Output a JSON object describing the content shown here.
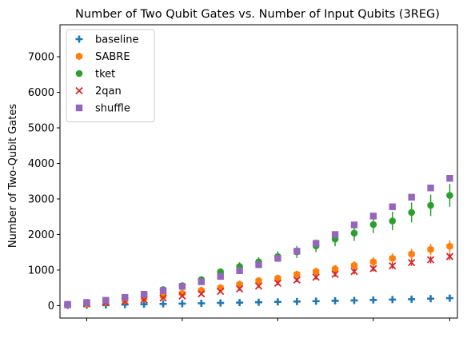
{
  "chart_data": {
    "type": "scatter",
    "title": "Number of Two Qubit Gates vs. Number of Input Qubits (3REG)",
    "ylabel": "Number of Two-Qubit Gates",
    "xlabel": "",
    "ylim": [
      -350,
      7900
    ],
    "y_ticks": [
      0,
      1000,
      2000,
      3000,
      4000,
      5000,
      6000,
      7000
    ],
    "x_range": [
      -0.4,
      20.4
    ],
    "x_ticks": [
      1,
      6,
      11,
      16,
      20
    ],
    "x_tick_labels_shown": false,
    "grid": false,
    "legend_position": "upper-left",
    "series": [
      {
        "name": "baseline",
        "marker": "plus",
        "color": "#1f77b4",
        "x": [
          0,
          1,
          2,
          3,
          4,
          5,
          6,
          7,
          8,
          9,
          10,
          11,
          12,
          13,
          14,
          15,
          16,
          17,
          18,
          19,
          20
        ],
        "values": [
          8,
          12,
          20,
          30,
          40,
          48,
          55,
          65,
          75,
          85,
          95,
          105,
          115,
          125,
          135,
          145,
          160,
          170,
          180,
          195,
          210
        ],
        "errors": [
          0,
          0,
          0,
          0,
          0,
          0,
          0,
          0,
          0,
          0,
          0,
          0,
          0,
          0,
          0,
          0,
          0,
          0,
          0,
          0,
          0
        ]
      },
      {
        "name": "SABRE",
        "marker": "hexagon",
        "color": "#ff7f0e",
        "x": [
          0,
          1,
          2,
          3,
          4,
          5,
          6,
          7,
          8,
          9,
          10,
          11,
          12,
          13,
          14,
          15,
          16,
          17,
          18,
          19,
          20
        ],
        "values": [
          30,
          65,
          105,
          155,
          210,
          270,
          345,
          430,
          500,
          600,
          700,
          770,
          880,
          960,
          1030,
          1130,
          1230,
          1330,
          1450,
          1580,
          1670
        ],
        "errors": [
          15,
          20,
          25,
          25,
          30,
          35,
          40,
          50,
          60,
          60,
          70,
          80,
          90,
          100,
          110,
          120,
          130,
          140,
          150,
          160,
          170
        ]
      },
      {
        "name": "tket",
        "marker": "circle",
        "color": "#2ca02c",
        "x": [
          0,
          1,
          2,
          3,
          4,
          5,
          6,
          7,
          8,
          9,
          10,
          11,
          12,
          13,
          14,
          15,
          16,
          17,
          18,
          19,
          20
        ],
        "values": [
          30,
          80,
          140,
          230,
          320,
          450,
          560,
          730,
          950,
          1100,
          1230,
          1380,
          1510,
          1680,
          1870,
          2040,
          2280,
          2380,
          2620,
          2820,
          3100
        ],
        "errors": [
          20,
          25,
          40,
          50,
          60,
          70,
          80,
          90,
          100,
          120,
          130,
          150,
          170,
          180,
          200,
          220,
          240,
          260,
          280,
          300,
          320
        ]
      },
      {
        "name": "2qan",
        "marker": "x",
        "color": "#d62728",
        "x": [
          0,
          1,
          2,
          3,
          4,
          5,
          6,
          7,
          8,
          9,
          10,
          11,
          12,
          13,
          14,
          15,
          16,
          17,
          18,
          19,
          20
        ],
        "values": [
          20,
          45,
          80,
          120,
          165,
          215,
          270,
          330,
          400,
          470,
          550,
          630,
          720,
          800,
          880,
          960,
          1040,
          1120,
          1210,
          1290,
          1380
        ],
        "errors": [
          10,
          15,
          20,
          20,
          25,
          30,
          30,
          40,
          40,
          50,
          50,
          60,
          60,
          70,
          70,
          80,
          80,
          90,
          90,
          100,
          100
        ]
      },
      {
        "name": "shuffle",
        "marker": "square",
        "color": "#9467bd",
        "x": [
          0,
          1,
          2,
          3,
          4,
          5,
          6,
          7,
          8,
          9,
          10,
          11,
          12,
          13,
          14,
          15,
          16,
          17,
          18,
          19,
          20
        ],
        "values": [
          35,
          90,
          150,
          230,
          320,
          420,
          540,
          670,
          820,
          980,
          1150,
          1330,
          1530,
          1750,
          2000,
          2270,
          2520,
          2780,
          3050,
          3310,
          3580
        ],
        "errors": [
          0,
          0,
          0,
          0,
          0,
          0,
          0,
          0,
          0,
          0,
          0,
          0,
          0,
          0,
          0,
          0,
          0,
          0,
          0,
          0,
          0
        ]
      }
    ]
  }
}
